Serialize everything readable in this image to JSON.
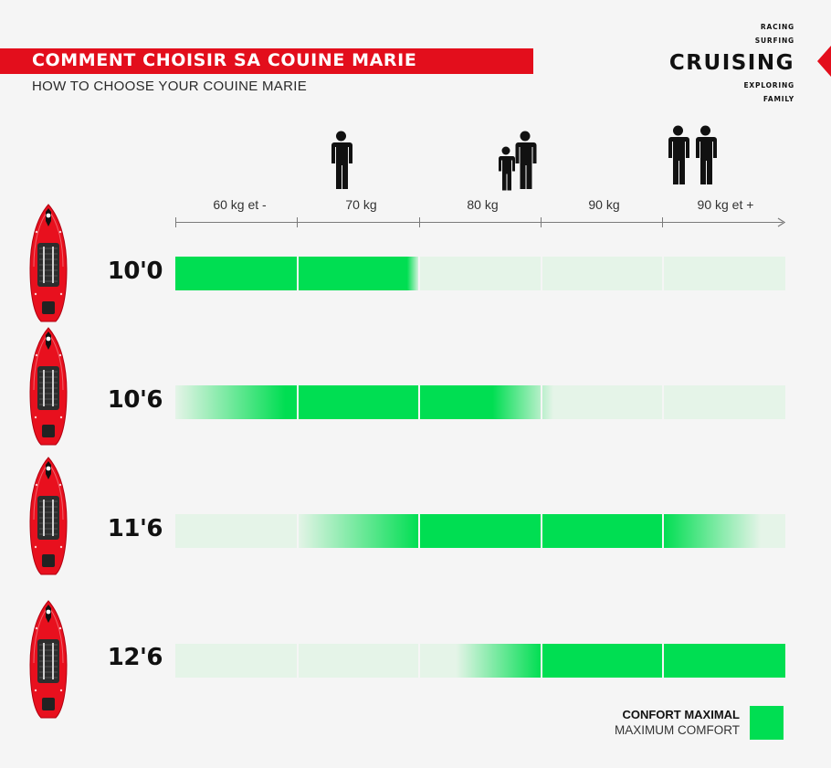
{
  "header": {
    "title_fr": "COMMENT CHOISIR SA COUINE MARIE",
    "title_en": "HOW TO CHOOSE YOUR COUINE MARIE"
  },
  "category_menu": {
    "items": [
      "RACING",
      "SURFING",
      "CRUISING",
      "EXPLORING",
      "FAMILY"
    ],
    "active": "CRUISING"
  },
  "colors": {
    "brand_red": "#e30e1c",
    "comfort_green": "#00de52",
    "track_pale_green": "#e5f4e8"
  },
  "icons": {
    "weight_70": "person-icon",
    "weight_80": "adult-with-child-icon",
    "weight_90_plus": "two-adults-icon",
    "board": "paddle-board-icon"
  },
  "chart_data": {
    "type": "heatmap",
    "title": "COMMENT CHOISIR SA COUINE MARIE",
    "subtitle": "HOW TO CHOOSE YOUR COUINE MARIE",
    "xlabel": "",
    "ylabel": "",
    "x_categories": [
      "60 kg et -",
      "70 kg",
      "80 kg",
      "90 kg",
      "90 kg et +"
    ],
    "y_categories": [
      "10'0",
      "10'6",
      "11'6",
      "12'6"
    ],
    "comfort": [
      [
        1.0,
        1.0,
        0.0,
        0.0,
        0.0
      ],
      [
        0.5,
        1.0,
        1.0,
        0.0,
        0.0
      ],
      [
        0.0,
        0.0,
        1.0,
        1.0,
        1.0
      ],
      [
        0.0,
        0.0,
        0.5,
        1.0,
        1.0
      ]
    ],
    "segments": [
      {
        "board": "10'0",
        "full_from": 0.0,
        "full_to": 1.9,
        "fade_to": 2.0,
        "fade_from": 0.0
      },
      {
        "board": "10'6",
        "fade_from": 0.0,
        "full_from": 0.9,
        "full_to": 2.6,
        "fade_to": 3.1
      },
      {
        "board": "11'6",
        "fade_from": 1.0,
        "full_from": 2.0,
        "full_to": 4.0,
        "fade_to": 4.8
      },
      {
        "board": "12'6",
        "fade_from": 2.3,
        "full_from": 3.0,
        "full_to": 5.0,
        "fade_to": 5.0
      }
    ],
    "legend": {
      "label_fr": "CONFORT MAXIMAL",
      "label_en": "MAXIMUM COMFORT",
      "position": "bottom-right"
    }
  }
}
